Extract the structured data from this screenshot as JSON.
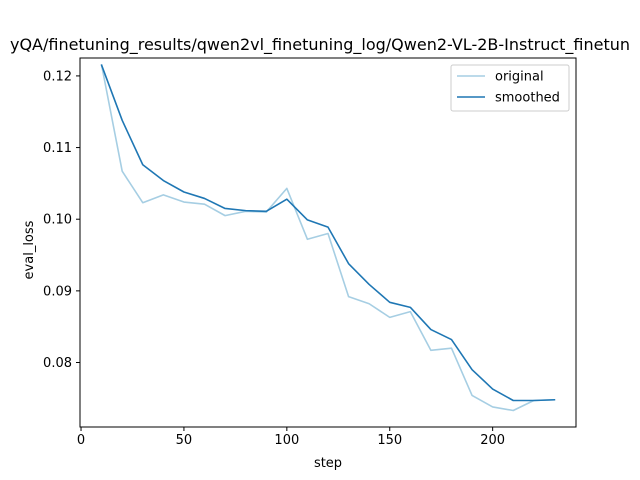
{
  "chart_data": {
    "type": "line",
    "title": "yQA/finetuning_results/qwen2vl_finetuning_log/Qwen2-VL-2B-Instruct_finetun",
    "xlabel": "step",
    "ylabel": "eval_loss",
    "xlim": [
      -0.5,
      240.5
    ],
    "ylim": [
      0.071,
      0.1225
    ],
    "x_ticks": [
      0,
      50,
      100,
      150,
      200
    ],
    "y_ticks": [
      0.08,
      0.09,
      0.1,
      0.11,
      0.12
    ],
    "y_tick_labels": [
      "0.08",
      "0.09",
      "0.10",
      "0.11",
      "0.12"
    ],
    "grid": false,
    "legend_position": "top-right",
    "x": [
      10,
      20,
      30,
      40,
      50,
      60,
      70,
      80,
      90,
      100,
      110,
      120,
      130,
      140,
      150,
      160,
      170,
      180,
      190,
      200,
      210,
      220,
      230
    ],
    "series": [
      {
        "name": "original",
        "color": "#a6cee3",
        "values": [
          0.1215,
          0.1067,
          0.1023,
          0.1034,
          0.1024,
          0.1021,
          0.1005,
          0.1011,
          0.101,
          0.1043,
          0.0972,
          0.098,
          0.0892,
          0.0882,
          0.0863,
          0.0871,
          0.0817,
          0.082,
          0.0754,
          0.0738,
          0.0733,
          0.0747,
          0.0748
        ]
      },
      {
        "name": "smoothed",
        "color": "#1f77b4",
        "values": [
          0.1215,
          0.1138,
          0.1076,
          0.1054,
          0.1038,
          0.1029,
          0.1015,
          0.1012,
          0.1011,
          0.1028,
          0.0999,
          0.0989,
          0.0938,
          0.0909,
          0.0884,
          0.0877,
          0.0846,
          0.0832,
          0.079,
          0.0763,
          0.0747,
          0.0747,
          0.0748
        ]
      }
    ]
  }
}
